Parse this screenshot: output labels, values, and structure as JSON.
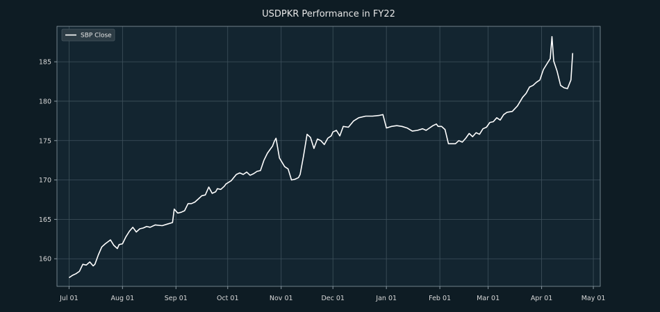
{
  "chart_data": {
    "type": "line",
    "title": "USDPKR Performance in FY22",
    "xlabel": "",
    "ylabel": "",
    "grid": true,
    "legend_position": "top-left",
    "xlim": [
      "2021-06-24",
      "2022-05-05"
    ],
    "ylim": [
      156.5,
      189.5
    ],
    "x_ticks": [
      {
        "date": "2021-07-01",
        "label": "Jul 01"
      },
      {
        "date": "2021-08-01",
        "label": "Aug 01"
      },
      {
        "date": "2021-09-01",
        "label": "Sep 01"
      },
      {
        "date": "2021-10-01",
        "label": "Oct 01"
      },
      {
        "date": "2021-11-01",
        "label": "Nov 01"
      },
      {
        "date": "2021-12-01",
        "label": "Dec 01"
      },
      {
        "date": "2022-01-01",
        "label": "Jan 01"
      },
      {
        "date": "2022-02-01",
        "label": "Feb 01"
      },
      {
        "date": "2022-03-01",
        "label": "Mar 01"
      },
      {
        "date": "2022-04-01",
        "label": "Apr 01"
      },
      {
        "date": "2022-05-01",
        "label": "May 01"
      }
    ],
    "y_ticks": [
      160,
      165,
      170,
      175,
      180,
      185
    ],
    "colors": {
      "background": "#0e1c24",
      "plot_background": "#132530",
      "line": "#ffffff",
      "grid": "#3f525d",
      "axis": "#8a9aa3"
    },
    "series": [
      {
        "name": "SBP Close",
        "x": [
          "2021-07-01",
          "2021-07-03",
          "2021-07-05",
          "2021-07-07",
          "2021-07-09",
          "2021-07-11",
          "2021-07-13",
          "2021-07-15",
          "2021-07-16",
          "2021-07-18",
          "2021-07-20",
          "2021-07-22",
          "2021-07-25",
          "2021-07-27",
          "2021-07-29",
          "2021-07-30",
          "2021-08-01",
          "2021-08-03",
          "2021-08-05",
          "2021-08-07",
          "2021-08-09",
          "2021-08-11",
          "2021-08-13",
          "2021-08-15",
          "2021-08-17",
          "2021-08-20",
          "2021-08-24",
          "2021-08-27",
          "2021-08-30",
          "2021-08-31",
          "2021-09-02",
          "2021-09-04",
          "2021-09-06",
          "2021-09-08",
          "2021-09-10",
          "2021-09-12",
          "2021-09-14",
          "2021-09-16",
          "2021-09-18",
          "2021-09-20",
          "2021-09-22",
          "2021-09-24",
          "2021-09-25",
          "2021-09-27",
          "2021-09-29",
          "2021-09-30",
          "2021-10-03",
          "2021-10-06",
          "2021-10-08",
          "2021-10-10",
          "2021-10-12",
          "2021-10-14",
          "2021-10-16",
          "2021-10-18",
          "2021-10-20",
          "2021-10-22",
          "2021-10-24",
          "2021-10-26",
          "2021-10-27",
          "2021-10-28",
          "2021-10-29",
          "2021-10-31",
          "2021-11-03",
          "2021-11-05",
          "2021-11-07",
          "2021-11-09",
          "2021-11-11",
          "2021-11-12",
          "2021-11-14",
          "2021-11-16",
          "2021-11-18",
          "2021-11-20",
          "2021-11-22",
          "2021-11-24",
          "2021-11-26",
          "2021-11-28",
          "2021-11-30",
          "2021-12-01",
          "2021-12-03",
          "2021-12-05",
          "2021-12-07",
          "2021-12-10",
          "2021-12-13",
          "2021-12-16",
          "2021-12-20",
          "2021-12-24",
          "2021-12-28",
          "2021-12-30",
          "2022-01-01",
          "2022-01-04",
          "2022-01-07",
          "2022-01-10",
          "2022-01-13",
          "2022-01-16",
          "2022-01-19",
          "2022-01-22",
          "2022-01-24",
          "2022-01-26",
          "2022-01-28",
          "2022-01-30",
          "2022-01-31",
          "2022-02-02",
          "2022-02-04",
          "2022-02-06",
          "2022-02-08",
          "2022-02-10",
          "2022-02-12",
          "2022-02-14",
          "2022-02-16",
          "2022-02-18",
          "2022-02-20",
          "2022-02-22",
          "2022-02-24",
          "2022-02-26",
          "2022-02-28",
          "2022-03-02",
          "2022-03-04",
          "2022-03-06",
          "2022-03-08",
          "2022-03-10",
          "2022-03-12",
          "2022-03-15",
          "2022-03-18",
          "2022-03-21",
          "2022-03-23",
          "2022-03-25",
          "2022-03-27",
          "2022-03-29",
          "2022-03-31",
          "2022-04-02",
          "2022-04-04",
          "2022-04-06",
          "2022-04-07",
          "2022-04-08",
          "2022-04-10",
          "2022-04-12",
          "2022-04-14",
          "2022-04-16",
          "2022-04-18",
          "2022-04-19"
        ],
        "values": [
          157.6,
          157.9,
          158.1,
          158.4,
          159.3,
          159.2,
          159.6,
          159.1,
          159.3,
          160.5,
          161.5,
          161.9,
          162.4,
          161.7,
          161.3,
          161.8,
          161.9,
          162.8,
          163.5,
          164.0,
          163.4,
          163.8,
          163.9,
          164.1,
          164.0,
          164.3,
          164.2,
          164.4,
          164.6,
          166.3,
          165.8,
          165.9,
          166.1,
          167.0,
          167.0,
          167.2,
          167.6,
          168.0,
          168.1,
          169.1,
          168.3,
          168.5,
          168.9,
          168.8,
          169.2,
          169.5,
          169.9,
          170.7,
          170.9,
          170.7,
          171.0,
          170.6,
          170.8,
          171.1,
          171.2,
          172.5,
          173.4,
          174.0,
          174.3,
          174.9,
          175.3,
          172.8,
          171.7,
          171.4,
          170.0,
          170.1,
          170.3,
          170.7,
          173.1,
          175.8,
          175.4,
          174.0,
          175.2,
          175.0,
          174.5,
          175.3,
          175.6,
          176.1,
          176.3,
          175.6,
          176.8,
          176.7,
          177.5,
          177.9,
          178.1,
          178.1,
          178.2,
          178.3,
          176.6,
          176.8,
          176.9,
          176.8,
          176.6,
          176.2,
          176.3,
          176.5,
          176.3,
          176.6,
          176.9,
          177.1,
          176.8,
          176.8,
          176.4,
          174.6,
          174.6,
          174.6,
          175.0,
          174.8,
          175.3,
          175.9,
          175.5,
          176.0,
          175.8,
          176.5,
          176.7,
          177.3,
          177.4,
          177.9,
          177.6,
          178.3,
          178.6,
          178.7,
          179.4,
          180.5,
          181.0,
          181.8,
          182.0,
          182.4,
          182.7,
          184.0,
          184.7,
          185.4,
          188.2,
          185.1,
          183.8,
          182.0,
          181.7,
          181.6,
          182.7,
          186.1
        ]
      }
    ]
  }
}
